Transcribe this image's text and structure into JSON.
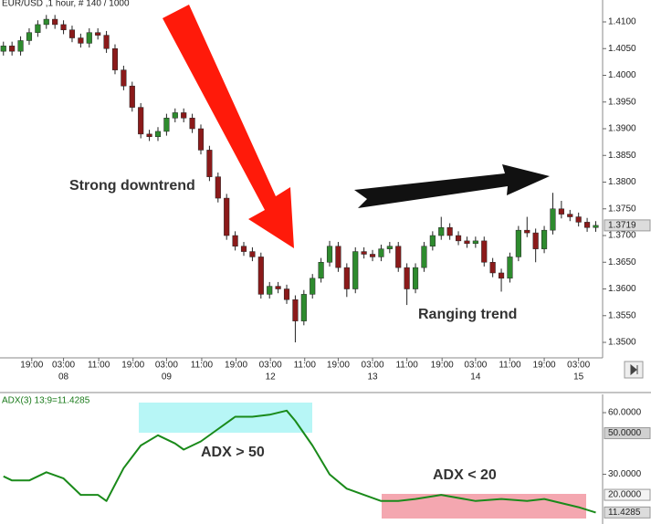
{
  "chart_data": [
    {
      "type": "candlestick",
      "title": "EUR/USD ,1 hour, # 140 / 1000",
      "annotations": [
        "Strong downtrend",
        "Ranging trend"
      ],
      "up_color": "#2e8b2e",
      "down_color": "#8b1a1a",
      "wick_color": "#222222",
      "x": [
        0,
        1,
        2,
        3,
        4,
        5,
        6,
        7,
        8,
        9,
        10,
        11,
        12,
        13,
        14,
        15,
        16,
        17,
        18,
        19,
        20,
        21,
        22,
        23,
        24,
        25,
        26,
        27,
        28,
        29,
        30,
        31,
        32,
        33,
        34,
        35,
        36,
        37,
        38,
        39,
        40,
        41,
        42,
        43,
        44,
        45,
        46,
        47,
        48,
        49,
        50,
        51,
        52,
        53,
        54,
        55,
        56,
        57,
        58,
        59,
        60,
        61,
        62,
        63,
        64,
        65,
        66,
        67,
        68,
        69
      ],
      "open": [
        1.4045,
        1.4055,
        1.4045,
        1.4065,
        1.408,
        1.4095,
        1.4105,
        1.4095,
        1.4085,
        1.407,
        1.406,
        1.408,
        1.4075,
        1.405,
        1.401,
        1.398,
        1.394,
        1.389,
        1.3885,
        1.3895,
        1.392,
        1.393,
        1.392,
        1.39,
        1.386,
        1.381,
        1.377,
        1.37,
        1.368,
        1.367,
        1.366,
        1.359,
        1.3605,
        1.36,
        1.358,
        1.354,
        1.359,
        1.362,
        1.365,
        1.368,
        1.364,
        1.36,
        1.367,
        1.3665,
        1.366,
        1.3675,
        1.368,
        1.364,
        1.36,
        1.364,
        1.368,
        1.37,
        1.3715,
        1.37,
        1.369,
        1.3685,
        1.369,
        1.365,
        1.363,
        1.362,
        1.366,
        1.371,
        1.3705,
        1.3675,
        1.371,
        1.375,
        1.374,
        1.3735,
        1.3725,
        1.3715
      ],
      "high": [
        1.4063,
        1.4063,
        1.4073,
        1.4088,
        1.4103,
        1.4113,
        1.4113,
        1.4103,
        1.4093,
        1.4078,
        1.4088,
        1.4088,
        1.4083,
        1.4058,
        1.4018,
        1.3988,
        1.3948,
        1.3898,
        1.3903,
        1.3928,
        1.3938,
        1.3938,
        1.3928,
        1.3908,
        1.3868,
        1.3818,
        1.3778,
        1.3708,
        1.3688,
        1.3678,
        1.3668,
        1.3613,
        1.3613,
        1.3608,
        1.3588,
        1.3598,
        1.3628,
        1.3658,
        1.369,
        1.3688,
        1.3648,
        1.3678,
        1.3678,
        1.3673,
        1.3683,
        1.3688,
        1.3688,
        1.3648,
        1.3648,
        1.3688,
        1.3708,
        1.3735,
        1.3723,
        1.3708,
        1.3698,
        1.3698,
        1.3698,
        1.3658,
        1.3638,
        1.3668,
        1.3718,
        1.3735,
        1.3713,
        1.3718,
        1.378,
        1.3765,
        1.3748,
        1.3743,
        1.3733,
        1.3727
      ],
      "low": [
        1.4037,
        1.4037,
        1.4037,
        1.4057,
        1.4072,
        1.4087,
        1.4087,
        1.4077,
        1.4062,
        1.4052,
        1.4052,
        1.4067,
        1.4042,
        1.4002,
        1.3972,
        1.3932,
        1.3882,
        1.3877,
        1.3877,
        1.3887,
        1.3912,
        1.3912,
        1.3892,
        1.3852,
        1.3802,
        1.3762,
        1.3692,
        1.3672,
        1.3662,
        1.3652,
        1.3582,
        1.3582,
        1.3592,
        1.3572,
        1.35,
        1.3532,
        1.3582,
        1.3612,
        1.3642,
        1.3632,
        1.3585,
        1.3592,
        1.3657,
        1.3652,
        1.3652,
        1.3667,
        1.3632,
        1.357,
        1.3592,
        1.3632,
        1.3672,
        1.3692,
        1.3692,
        1.3682,
        1.3677,
        1.3677,
        1.3642,
        1.3622,
        1.3595,
        1.3612,
        1.3652,
        1.3697,
        1.365,
        1.3667,
        1.3702,
        1.3732,
        1.3727,
        1.3717,
        1.3707,
        1.3707
      ],
      "close": [
        1.4055,
        1.4045,
        1.4065,
        1.408,
        1.4095,
        1.4105,
        1.4095,
        1.4085,
        1.407,
        1.406,
        1.408,
        1.4075,
        1.405,
        1.401,
        1.398,
        1.394,
        1.389,
        1.3885,
        1.3895,
        1.392,
        1.393,
        1.392,
        1.39,
        1.386,
        1.381,
        1.377,
        1.37,
        1.368,
        1.367,
        1.366,
        1.359,
        1.3605,
        1.36,
        1.358,
        1.354,
        1.359,
        1.362,
        1.365,
        1.368,
        1.364,
        1.36,
        1.367,
        1.3665,
        1.366,
        1.3675,
        1.368,
        1.364,
        1.36,
        1.364,
        1.368,
        1.37,
        1.3715,
        1.37,
        1.369,
        1.3685,
        1.369,
        1.365,
        1.363,
        1.362,
        1.366,
        1.371,
        1.3705,
        1.3675,
        1.371,
        1.375,
        1.374,
        1.3735,
        1.3725,
        1.3715,
        1.3719
      ],
      "xlim": [
        -0.4,
        69.8
      ],
      "xticks": [
        {
          "value": 3.3,
          "label": "19:00"
        },
        {
          "value": 7.0,
          "label": "03:00"
        },
        {
          "value": 11.1,
          "label": "11:00"
        },
        {
          "value": 15.1,
          "label": "19:00"
        },
        {
          "value": 19.0,
          "label": "03:00"
        },
        {
          "value": 23.1,
          "label": "11:00"
        },
        {
          "value": 27.1,
          "label": "19:00"
        },
        {
          "value": 31.1,
          "label": "03:00"
        },
        {
          "value": 35.1,
          "label": "11:00"
        },
        {
          "value": 39.0,
          "label": "19:00"
        },
        {
          "value": 43.0,
          "label": "03:00"
        },
        {
          "value": 47.0,
          "label": "11:00"
        },
        {
          "value": 51.1,
          "label": "19:00"
        },
        {
          "value": 55.0,
          "label": "03:00"
        },
        {
          "value": 59.0,
          "label": "11:00"
        },
        {
          "value": 63.0,
          "label": "19:00"
        },
        {
          "value": 67.0,
          "label": "03:00"
        }
      ],
      "date_ticks": [
        {
          "value": 7.0,
          "label": "08"
        },
        {
          "value": 19.0,
          "label": "09"
        },
        {
          "value": 31.1,
          "label": "12"
        },
        {
          "value": 43.0,
          "label": "13"
        },
        {
          "value": 55.0,
          "label": "14"
        },
        {
          "value": 67.0,
          "label": "15"
        }
      ],
      "ylim": [
        1.3471,
        1.4141
      ],
      "yticks": [
        {
          "value": 1.35,
          "label": "1.3500"
        },
        {
          "value": 1.355,
          "label": "1.3550"
        },
        {
          "value": 1.36,
          "label": "1.3600"
        },
        {
          "value": 1.365,
          "label": "1.3650"
        },
        {
          "value": 1.37,
          "label": "1.3700"
        },
        {
          "value": 1.375,
          "label": "1.3750"
        },
        {
          "value": 1.38,
          "label": "1.3800"
        },
        {
          "value": 1.385,
          "label": "1.3850"
        },
        {
          "value": 1.39,
          "label": "1.3900"
        },
        {
          "value": 1.395,
          "label": "1.3950"
        },
        {
          "value": 1.4,
          "label": "1.4000"
        },
        {
          "value": 1.405,
          "label": "1.4050"
        },
        {
          "value": 1.41,
          "label": "1.4100"
        }
      ],
      "last_value": {
        "value": 1.3719,
        "label": "1.3719"
      }
    },
    {
      "type": "line",
      "title": "ADX(3) 13;9=11.4285",
      "annotations": [
        "ADX > 50",
        "ADX < 20"
      ],
      "color": "#1a8a1a",
      "x": [
        0,
        1,
        3,
        5,
        7,
        9,
        11,
        12,
        14,
        16,
        18,
        20,
        21,
        23,
        25,
        27,
        29,
        31,
        33,
        34,
        36,
        38,
        40,
        42,
        44,
        46,
        48,
        51,
        55,
        58,
        61,
        63,
        65,
        67,
        69
      ],
      "values": [
        29,
        27,
        27,
        31,
        28,
        20,
        20,
        17,
        33,
        44,
        49,
        45,
        42,
        46,
        52,
        58,
        58,
        59,
        61,
        56,
        44,
        30,
        23,
        20,
        17,
        17,
        18,
        20,
        17,
        18,
        17,
        18,
        16,
        14,
        11.4285
      ],
      "xlim": [
        -0.4,
        69.8
      ],
      "ylim": [
        6.7,
        68.9
      ],
      "yticks": [
        {
          "value": 60,
          "label": "60.0000"
        },
        {
          "value": 30,
          "label": "30.0000"
        }
      ],
      "levels": [
        {
          "value": 50,
          "label": "50.0000"
        },
        {
          "value": 20,
          "label": "20.0000"
        }
      ],
      "last_value": {
        "value": 11.4285,
        "label": "11.4285"
      }
    }
  ]
}
